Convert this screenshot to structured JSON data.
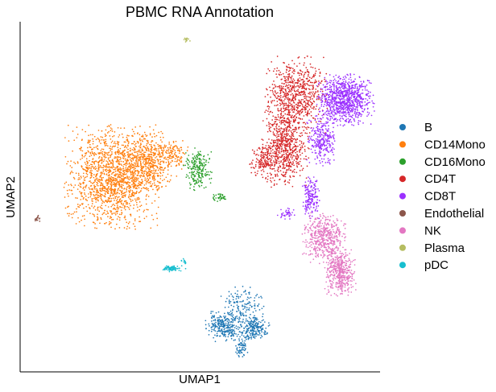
{
  "chart_data": {
    "type": "scatter",
    "title": "PBMC RNA Annotation",
    "xlabel": "UMAP1",
    "ylabel": "UMAP2",
    "xlim": [
      0,
      100
    ],
    "ylim": [
      0,
      100
    ],
    "ticks_shown": false,
    "grid": false,
    "legend_position": "right",
    "series": [
      {
        "name": "B",
        "color": "#1f77b4",
        "regions": [
          {
            "cx": 56.6,
            "cy": 13.0,
            "rx": 4.2,
            "ry": 3.6,
            "n": 260
          },
          {
            "cx": 64.8,
            "cy": 12.4,
            "rx": 3.6,
            "ry": 3.0,
            "n": 200
          },
          {
            "cx": 61.6,
            "cy": 18.5,
            "rx": 5.0,
            "ry": 5.0,
            "n": 160
          },
          {
            "cx": 61.4,
            "cy": 6.8,
            "rx": 1.6,
            "ry": 2.4,
            "n": 60
          }
        ]
      },
      {
        "name": "CD14Mono",
        "color": "#ff7f0e",
        "regions": [
          {
            "cx": 25.9,
            "cy": 55.7,
            "rx": 11.0,
            "ry": 12.0,
            "n": 1500
          },
          {
            "cx": 36.0,
            "cy": 60.0,
            "rx": 6.5,
            "ry": 7.0,
            "n": 450
          },
          {
            "cx": 43.0,
            "cy": 62.0,
            "rx": 3.5,
            "ry": 3.5,
            "n": 90
          }
        ]
      },
      {
        "name": "CD16Mono",
        "color": "#2ca02c",
        "regions": [
          {
            "cx": 49.3,
            "cy": 58.1,
            "rx": 3.2,
            "ry": 5.0,
            "n": 220
          },
          {
            "cx": 55.6,
            "cy": 49.8,
            "rx": 1.6,
            "ry": 0.9,
            "n": 40
          }
        ]
      },
      {
        "name": "CD4T",
        "color": "#d62728",
        "regions": [
          {
            "cx": 76.6,
            "cy": 79.0,
            "rx": 7.0,
            "ry": 9.0,
            "n": 700
          },
          {
            "cx": 73.6,
            "cy": 64.0,
            "rx": 5.5,
            "ry": 9.0,
            "n": 650
          },
          {
            "cx": 67.5,
            "cy": 60.0,
            "rx": 3.0,
            "ry": 4.0,
            "n": 140
          }
        ]
      },
      {
        "name": "CD8T",
        "color": "#9b30ff",
        "regions": [
          {
            "cx": 90.3,
            "cy": 77.6,
            "rx": 6.5,
            "ry": 6.0,
            "n": 900
          },
          {
            "cx": 83.9,
            "cy": 66.0,
            "rx": 3.5,
            "ry": 6.0,
            "n": 260
          },
          {
            "cx": 80.8,
            "cy": 49.8,
            "rx": 2.0,
            "ry": 5.0,
            "n": 170
          },
          {
            "cx": 74.0,
            "cy": 45.0,
            "rx": 2.0,
            "ry": 1.5,
            "n": 35
          }
        ]
      },
      {
        "name": "Endothelial",
        "color": "#8c564b",
        "regions": [
          {
            "cx": 4.7,
            "cy": 43.7,
            "rx": 0.9,
            "ry": 0.9,
            "n": 18
          }
        ]
      },
      {
        "name": "NK",
        "color": "#e377c2",
        "regions": [
          {
            "cx": 84.2,
            "cy": 38.4,
            "rx": 5.0,
            "ry": 6.0,
            "n": 480
          },
          {
            "cx": 89.0,
            "cy": 28.5,
            "rx": 3.5,
            "ry": 5.5,
            "n": 420
          }
        ]
      },
      {
        "name": "Plasma",
        "color": "#b5bd61",
        "regions": [
          {
            "cx": 46.4,
            "cy": 95.0,
            "rx": 0.9,
            "ry": 0.8,
            "n": 14
          }
        ]
      },
      {
        "name": "pDC",
        "color": "#17becf",
        "regions": [
          {
            "cx": 42.3,
            "cy": 29.5,
            "rx": 2.2,
            "ry": 0.7,
            "n": 70
          },
          {
            "cx": 45.4,
            "cy": 31.0,
            "rx": 0.7,
            "ry": 1.3,
            "n": 14
          }
        ]
      }
    ]
  }
}
